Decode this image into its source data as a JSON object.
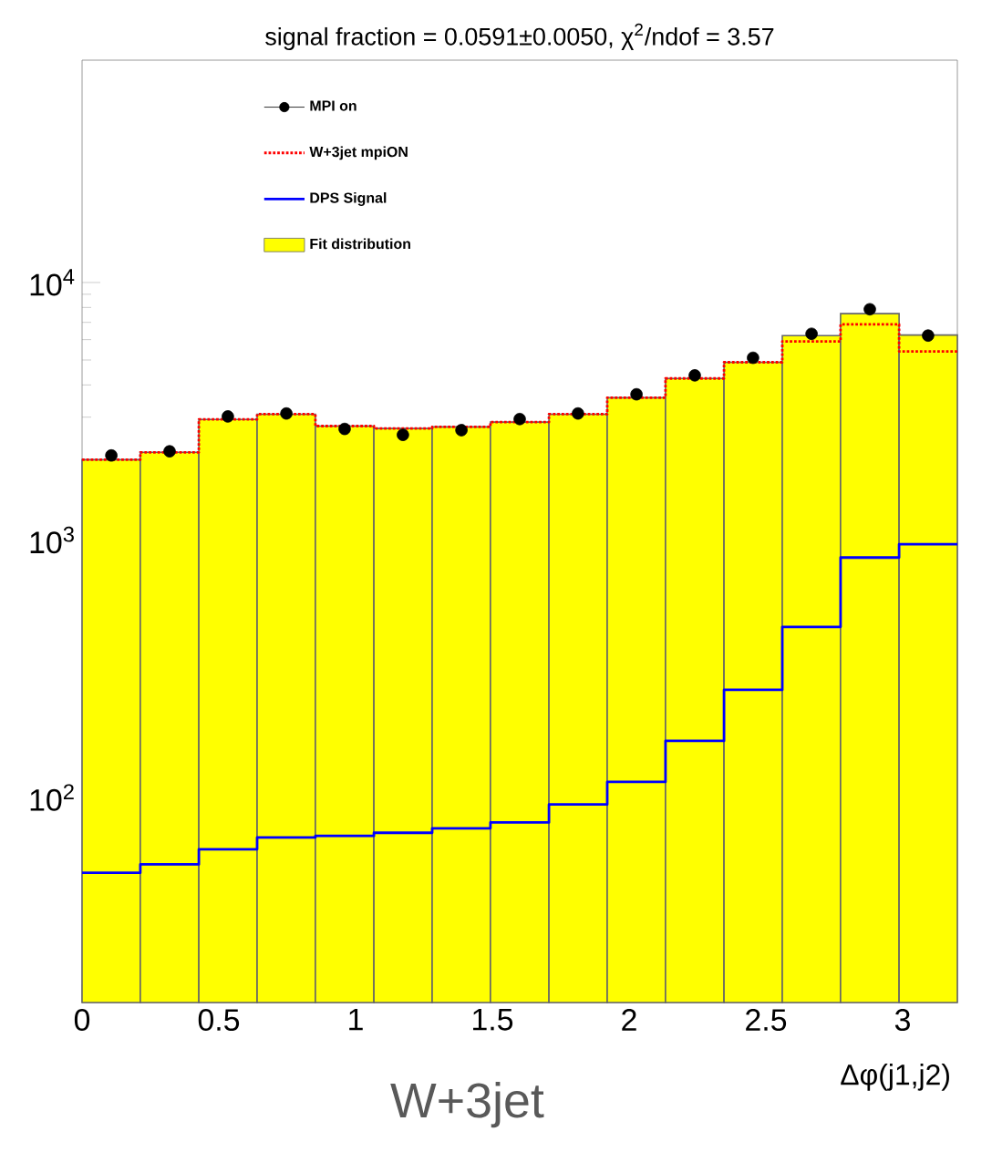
{
  "chart_data": {
    "type": "histogram",
    "title": "signal fraction = 0.0591±0.0050, χ$^{2}$/ndof = 3.57",
    "xlabel": "Δφ(j1,j2)",
    "annotations": [
      "W+3jet"
    ],
    "bins": [
      0,
      0.213,
      0.427,
      0.64,
      0.853,
      1.067,
      1.28,
      1.493,
      1.707,
      1.92,
      2.133,
      2.347,
      2.56,
      2.773,
      2.987,
      3.2
    ],
    "series": [
      {
        "name": "MPI on",
        "type": "scatter",
        "marker": "circle",
        "color": "#000000",
        "x": [
          0.107,
          0.32,
          0.533,
          0.747,
          0.96,
          1.173,
          1.387,
          1.6,
          1.813,
          2.027,
          2.24,
          2.453,
          2.667,
          2.88,
          3.093
        ],
        "values": [
          2130,
          2210,
          3020,
          3100,
          2700,
          2560,
          2670,
          2950,
          3100,
          3680,
          4360,
          5100,
          6320,
          7870,
          6220
        ]
      },
      {
        "name": "W+3jet mpiON",
        "type": "step",
        "line_style": "dotted",
        "color": "#ff0000",
        "x": [
          0,
          0.213,
          0.427,
          0.64,
          0.853,
          1.067,
          1.28,
          1.493,
          1.707,
          1.92,
          2.133,
          2.347,
          2.56,
          2.773,
          2.987,
          3.2
        ],
        "values": [
          2050,
          2190,
          2940,
          3080,
          2770,
          2710,
          2750,
          2870,
          3080,
          3570,
          4240,
          4900,
          5900,
          6880,
          5400,
          5400
        ]
      },
      {
        "name": "DPS Signal",
        "type": "step",
        "line_style": "solid",
        "color": "#0000ff",
        "x": [
          0,
          0.213,
          0.427,
          0.64,
          0.853,
          1.067,
          1.28,
          1.493,
          1.707,
          1.92,
          2.133,
          2.347,
          2.56,
          2.773,
          2.987,
          3.2
        ],
        "values": [
          51,
          55,
          63,
          70,
          71,
          73,
          76,
          80,
          94,
          115,
          166,
          262,
          460,
          855,
          964,
          964
        ]
      },
      {
        "name": "Fit distribution",
        "color": "#ffff00",
        "values": [
          2050,
          2190,
          2940,
          3080,
          2770,
          2710,
          2750,
          2870,
          3080,
          3570,
          4240,
          4900,
          6220,
          7570,
          6250
        ]
      }
    ],
    "xlim": [
      0,
      3.2
    ],
    "ylim": [
      16,
      73000
    ],
    "log": "y",
    "xticks": [
      0,
      0.5,
      1,
      1.5,
      2,
      2.5,
      3
    ],
    "yticks": [
      {
        "value": 100,
        "label": "10$^{2}$"
      },
      {
        "value": 1000,
        "label": "10$^{3}$"
      },
      {
        "value": 10000,
        "label": "10$^{4}$"
      }
    ],
    "grid": false,
    "legend": "top left"
  }
}
